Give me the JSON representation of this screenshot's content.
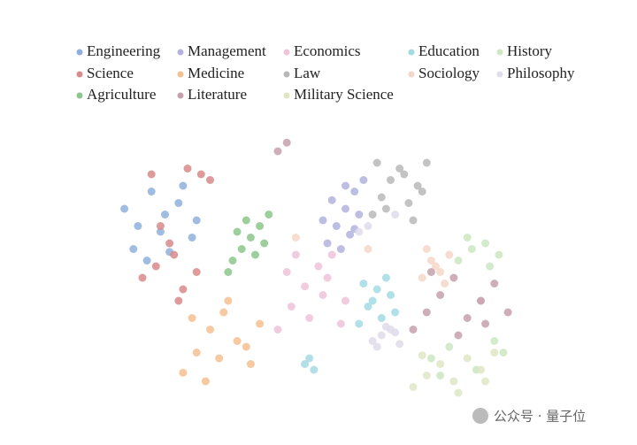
{
  "chart_data": {
    "type": "scatter",
    "xlim": [
      0,
      100
    ],
    "ylim": [
      0,
      100
    ],
    "series": [
      {
        "name": "Engineering",
        "color": "#8fb0dc",
        "x": [
          6,
          9,
          12,
          15,
          18,
          21,
          8,
          14,
          19,
          11,
          16,
          22
        ],
        "y": [
          72,
          66,
          78,
          70,
          74,
          62,
          58,
          64,
          80,
          54,
          57,
          68
        ]
      },
      {
        "name": "Management",
        "color": "#b3b3de",
        "x": [
          51,
          53,
          55,
          57,
          59,
          52,
          56,
          58,
          54,
          50,
          55,
          57
        ],
        "y": [
          60,
          66,
          72,
          78,
          82,
          75,
          63,
          70,
          58,
          68,
          80,
          65
        ]
      },
      {
        "name": "Economics",
        "color": "#efc3da",
        "x": [
          40,
          43,
          46,
          49,
          52,
          55,
          42,
          47,
          51,
          54,
          44,
          50
        ],
        "y": [
          30,
          38,
          45,
          52,
          56,
          40,
          50,
          34,
          48,
          32,
          56,
          42
        ]
      },
      {
        "name": "Education",
        "color": "#a3dbe4",
        "x": [
          58,
          60,
          62,
          64,
          66,
          59,
          63,
          65,
          61,
          46,
          48,
          47
        ],
        "y": [
          32,
          38,
          44,
          48,
          36,
          46,
          34,
          42,
          40,
          18,
          16,
          20
        ]
      },
      {
        "name": "History",
        "color": "#cde8c2",
        "x": [
          80,
          83,
          86,
          89,
          82,
          87,
          74,
          78,
          84,
          90,
          76,
          88
        ],
        "y": [
          54,
          58,
          60,
          56,
          62,
          52,
          20,
          24,
          16,
          22,
          14,
          26
        ]
      },
      {
        "name": "Science",
        "color": "#d98a8a",
        "x": [
          10,
          13,
          16,
          19,
          22,
          25,
          12,
          17,
          20,
          14,
          23,
          18
        ],
        "y": [
          48,
          52,
          60,
          44,
          50,
          82,
          84,
          56,
          86,
          66,
          84,
          40
        ]
      },
      {
        "name": "Medicine",
        "color": "#f5c08f",
        "x": [
          19,
          22,
          25,
          28,
          31,
          34,
          36,
          24,
          29,
          33,
          21,
          27
        ],
        "y": [
          15,
          22,
          30,
          36,
          26,
          18,
          32,
          12,
          40,
          24,
          34,
          20
        ]
      },
      {
        "name": "Law",
        "color": "#b8b8b8",
        "x": [
          61,
          63,
          65,
          67,
          69,
          71,
          73,
          64,
          68,
          72,
          62,
          70
        ],
        "y": [
          70,
          76,
          82,
          86,
          74,
          80,
          88,
          72,
          84,
          78,
          88,
          68
        ]
      },
      {
        "name": "Sociology",
        "color": "#f6d6c8",
        "x": [
          72,
          74,
          76,
          78,
          73,
          77,
          75,
          60,
          44,
          85
        ],
        "y": [
          48,
          54,
          50,
          56,
          58,
          46,
          52,
          58,
          62,
          40
        ]
      },
      {
        "name": "Philosophy",
        "color": "#e1dbea",
        "x": [
          61,
          63,
          65,
          67,
          62,
          66,
          64,
          58,
          60,
          66
        ],
        "y": [
          26,
          28,
          30,
          25,
          24,
          29,
          31,
          64,
          66,
          70
        ]
      },
      {
        "name": "Agriculture",
        "color": "#8cc78c",
        "x": [
          30,
          32,
          34,
          36,
          38,
          31,
          35,
          37,
          33,
          29
        ],
        "y": [
          54,
          58,
          62,
          66,
          70,
          64,
          56,
          60,
          68,
          50
        ]
      },
      {
        "name": "Literature",
        "color": "#c4a0ad",
        "x": [
          70,
          73,
          76,
          79,
          82,
          85,
          88,
          91,
          74,
          80,
          86,
          40,
          42
        ],
        "y": [
          30,
          36,
          42,
          48,
          34,
          40,
          46,
          36,
          50,
          28,
          32,
          92,
          95
        ]
      },
      {
        "name": "Military Science",
        "color": "#dde8c4",
        "x": [
          70,
          73,
          76,
          79,
          82,
          85,
          88,
          72,
          80,
          86
        ],
        "y": [
          10,
          14,
          18,
          12,
          20,
          16,
          22,
          21,
          8,
          12
        ]
      }
    ]
  },
  "watermark": "公众号 · 量子位"
}
